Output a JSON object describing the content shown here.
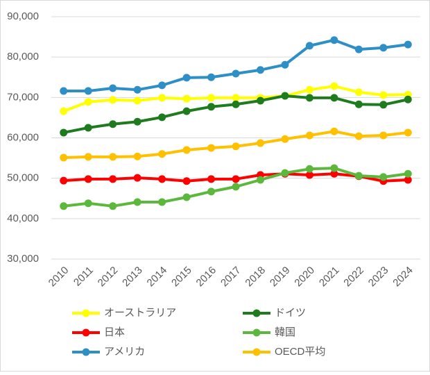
{
  "chart_data": {
    "type": "line",
    "categories": [
      "2010",
      "2011",
      "2012",
      "2013",
      "2014",
      "2015",
      "2016",
      "2017",
      "2018",
      "2019",
      "2020",
      "2021",
      "2022",
      "2023",
      "2024"
    ],
    "ylim": [
      30000,
      90000
    ],
    "yticks": [
      {
        "value": 30000,
        "label": "30,000"
      },
      {
        "value": 40000,
        "label": "40,000"
      },
      {
        "value": 50000,
        "label": "50,000"
      },
      {
        "value": 60000,
        "label": "60,000"
      },
      {
        "value": 70000,
        "label": "70,000"
      },
      {
        "value": 80000,
        "label": "80,000"
      },
      {
        "value": 90000,
        "label": "90,000"
      }
    ],
    "grid": true,
    "legend": "bottom",
    "series": [
      {
        "name": "オーストラリア",
        "color": "#ffff00",
        "values": [
          66600,
          68900,
          69400,
          69200,
          69900,
          69700,
          69900,
          69900,
          69900,
          70400,
          71900,
          72800,
          71300,
          70600,
          70700
        ]
      },
      {
        "name": "ドイツ",
        "color": "#1e7b1e",
        "values": [
          61300,
          62500,
          63400,
          64000,
          65100,
          66600,
          67700,
          68300,
          69200,
          70400,
          69900,
          69900,
          68300,
          68200,
          69500
        ]
      },
      {
        "name": "日本",
        "color": "#ff0000",
        "values": [
          49400,
          49800,
          49800,
          50100,
          49800,
          49300,
          49800,
          49800,
          50800,
          51100,
          50800,
          51100,
          50500,
          49300,
          49600
        ]
      },
      {
        "name": "韓国",
        "color": "#5cb83c",
        "values": [
          43100,
          43800,
          43100,
          44100,
          44100,
          45300,
          46700,
          47900,
          49600,
          51300,
          52300,
          52500,
          50600,
          50300,
          51100
        ]
      },
      {
        "name": "アメリカ",
        "color": "#2e8fc6",
        "values": [
          71600,
          71600,
          72300,
          71900,
          73000,
          74900,
          75000,
          75900,
          76800,
          78100,
          82800,
          84200,
          81900,
          82300,
          83100
        ]
      },
      {
        "name": "OECD平均",
        "color": "#ffc000",
        "values": [
          55100,
          55300,
          55300,
          55400,
          56000,
          57000,
          57500,
          57900,
          58700,
          59700,
          60600,
          61600,
          60400,
          60600,
          61300
        ]
      }
    ]
  }
}
